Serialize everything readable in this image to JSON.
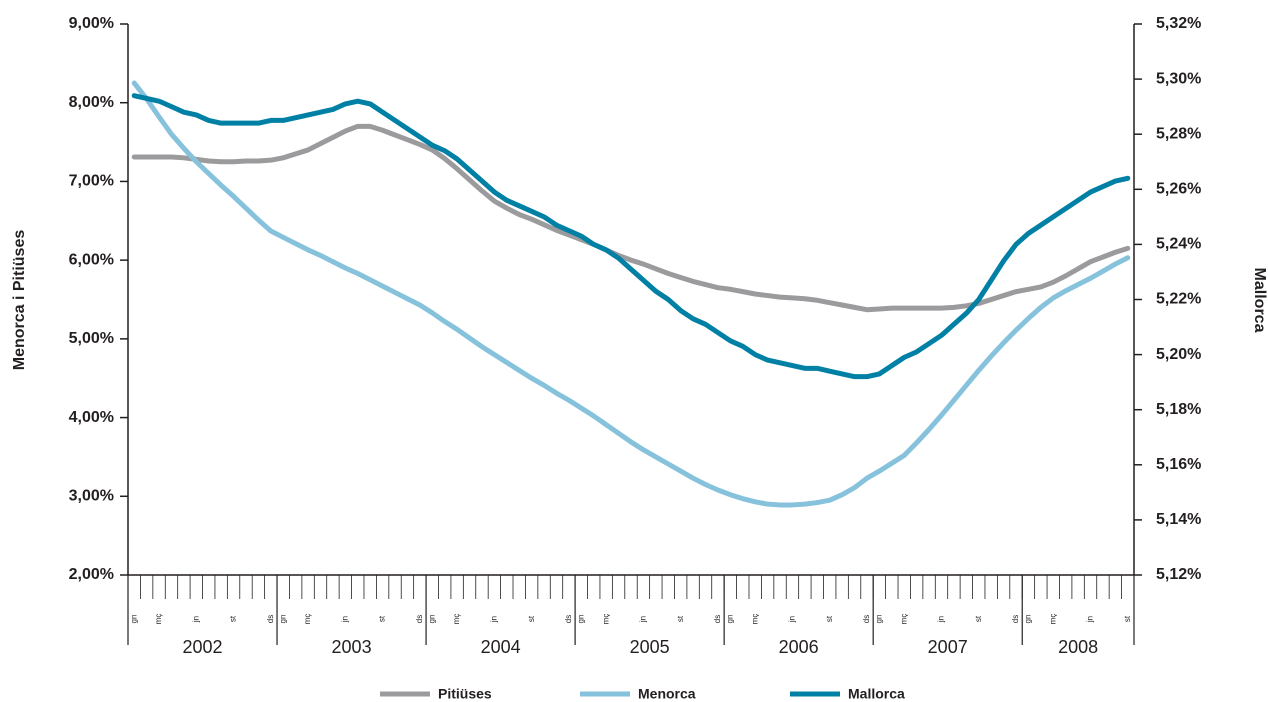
{
  "chart_data": {
    "type": "line",
    "y_label": "Menorca i Pitiüses",
    "y2_label": "Mallorca",
    "years": [
      "2002",
      "2003",
      "2004",
      "2005",
      "2006",
      "2007",
      "2008"
    ],
    "categories": [
      "gn",
      null,
      "mç",
      null,
      null,
      "jn",
      null,
      null,
      "st",
      null,
      null,
      "ds",
      "gn",
      null,
      "mç",
      null,
      null,
      "jn",
      null,
      null,
      "st",
      null,
      null,
      "ds",
      "gn",
      null,
      "mç",
      null,
      null,
      "jn",
      null,
      null,
      "st",
      null,
      null,
      "ds",
      "gn",
      null,
      "mç",
      null,
      null,
      "jn",
      null,
      null,
      "st",
      null,
      null,
      "ds",
      "gn",
      null,
      "mç",
      null,
      null,
      "jn",
      null,
      null,
      "st",
      null,
      null,
      "ds",
      "gn",
      null,
      "mç",
      null,
      null,
      "jn",
      null,
      null,
      "st",
      null,
      null,
      "ds",
      "gn",
      null,
      "mç",
      null,
      null,
      "jn",
      null,
      null,
      "st"
    ],
    "ylim": [
      2,
      9
    ],
    "yticks": [
      {
        "value": 2,
        "label": "2,00%"
      },
      {
        "value": 3,
        "label": "3,00%"
      },
      {
        "value": 4,
        "label": "4,00%"
      },
      {
        "value": 5,
        "label": "5,00%"
      },
      {
        "value": 6,
        "label": "6,00%"
      },
      {
        "value": 7,
        "label": "7,00%"
      },
      {
        "value": 8,
        "label": "8,00%"
      },
      {
        "value": 9,
        "label": "9,00%"
      }
    ],
    "y2lim": [
      5.12,
      5.32
    ],
    "y2ticks": [
      {
        "value": 5.12,
        "label": "5,12%"
      },
      {
        "value": 5.14,
        "label": "5,14%"
      },
      {
        "value": 5.16,
        "label": "5,16%"
      },
      {
        "value": 5.18,
        "label": "5,18%"
      },
      {
        "value": 5.2,
        "label": "5,20%"
      },
      {
        "value": 5.22,
        "label": "5,22%"
      },
      {
        "value": 5.24,
        "label": "5,24%"
      },
      {
        "value": 5.26,
        "label": "5,26%"
      },
      {
        "value": 5.28,
        "label": "5,28%"
      },
      {
        "value": 5.3,
        "label": "5,30%"
      },
      {
        "value": 5.32,
        "label": "5,32%"
      }
    ],
    "grid": false,
    "legend": "bottom",
    "series": [
      {
        "name": "Pitiüses",
        "color": "#9b9a9d",
        "values": [
          7.31,
          7.31,
          7.31,
          7.31,
          7.3,
          7.28,
          7.26,
          7.25,
          7.25,
          7.26,
          7.26,
          7.27,
          7.3,
          7.35,
          7.4,
          7.48,
          7.56,
          7.64,
          7.7,
          7.7,
          7.65,
          7.59,
          7.53,
          7.47,
          7.4,
          7.29,
          7.16,
          7.02,
          6.88,
          6.75,
          6.66,
          6.58,
          6.52,
          6.45,
          6.38,
          6.32,
          6.26,
          6.2,
          6.13,
          6.06,
          6.0,
          5.95,
          5.89,
          5.83,
          5.78,
          5.73,
          5.69,
          5.65,
          5.63,
          5.6,
          5.57,
          5.55,
          5.53,
          5.52,
          5.51,
          5.49,
          5.46,
          5.43,
          5.4,
          5.37,
          5.38,
          5.39,
          5.39,
          5.39,
          5.39,
          5.39,
          5.4,
          5.42,
          5.45,
          5.5,
          5.55,
          5.6,
          5.63,
          5.66,
          5.72,
          5.8,
          5.89,
          5.98,
          6.04,
          6.1,
          6.15
        ]
      },
      {
        "name": "Menorca",
        "color": "#86c2dc",
        "values": [
          8.25,
          8.05,
          7.82,
          7.6,
          7.42,
          7.25,
          7.1,
          6.95,
          6.81,
          6.66,
          6.51,
          6.37,
          6.29,
          6.21,
          6.13,
          6.06,
          5.98,
          5.9,
          5.83,
          5.75,
          5.67,
          5.59,
          5.51,
          5.43,
          5.33,
          5.22,
          5.12,
          5.01,
          4.9,
          4.8,
          4.7,
          4.6,
          4.5,
          4.41,
          4.31,
          4.22,
          4.12,
          4.02,
          3.91,
          3.8,
          3.69,
          3.59,
          3.5,
          3.41,
          3.32,
          3.23,
          3.15,
          3.08,
          3.02,
          2.97,
          2.93,
          2.9,
          2.89,
          2.89,
          2.9,
          2.92,
          2.95,
          3.02,
          3.11,
          3.23,
          3.32,
          3.42,
          3.52,
          3.68,
          3.85,
          4.03,
          4.22,
          4.41,
          4.6,
          4.78,
          4.95,
          5.11,
          5.26,
          5.4,
          5.52,
          5.61,
          5.69,
          5.77,
          5.86,
          5.95,
          6.03
        ]
      },
      {
        "name": "Mallorca",
        "color": "#0080a4",
        "axis": "y2",
        "values": [
          5.294,
          5.293,
          5.292,
          5.29,
          5.288,
          5.287,
          5.285,
          5.284,
          5.284,
          5.284,
          5.284,
          5.285,
          5.285,
          5.286,
          5.287,
          5.288,
          5.289,
          5.291,
          5.292,
          5.291,
          5.288,
          5.285,
          5.282,
          5.279,
          5.276,
          5.274,
          5.271,
          5.267,
          5.263,
          5.259,
          5.256,
          5.254,
          5.252,
          5.25,
          5.247,
          5.245,
          5.243,
          5.24,
          5.238,
          5.235,
          5.231,
          5.227,
          5.223,
          5.22,
          5.216,
          5.213,
          5.211,
          5.208,
          5.205,
          5.203,
          5.2,
          5.198,
          5.197,
          5.196,
          5.195,
          5.195,
          5.194,
          5.193,
          5.192,
          5.192,
          5.193,
          5.196,
          5.199,
          5.201,
          5.204,
          5.207,
          5.211,
          5.215,
          5.22,
          5.227,
          5.234,
          5.24,
          5.244,
          5.247,
          5.25,
          5.253,
          5.256,
          5.259,
          5.261,
          5.263,
          5.264
        ]
      }
    ]
  }
}
